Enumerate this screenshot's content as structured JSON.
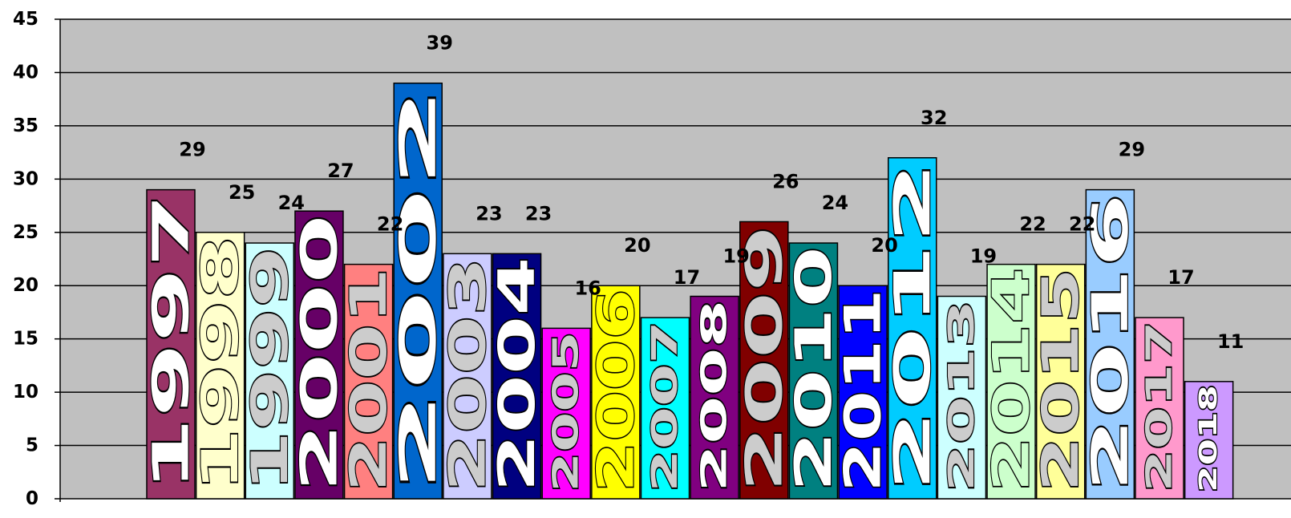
{
  "chart_data": {
    "type": "bar",
    "categories": [
      "1997",
      "1998",
      "1999",
      "2000",
      "2001",
      "2002",
      "2003",
      "2004",
      "2005",
      "2006",
      "2007",
      "2008",
      "2009",
      "2010",
      "2011",
      "2012",
      "2013",
      "2014",
      "2015",
      "2016",
      "2017",
      "2018"
    ],
    "values": [
      29,
      25,
      24,
      27,
      22,
      39,
      23,
      23,
      16,
      20,
      17,
      19,
      26,
      24,
      20,
      32,
      19,
      22,
      22,
      29,
      17,
      11
    ],
    "colors": [
      "#993366",
      "#FFFFCC",
      "#CCFFFF",
      "#660066",
      "#FF8080",
      "#0066CC",
      "#CCCCFF",
      "#000080",
      "#FF00FF",
      "#FFFF00",
      "#00FFFF",
      "#800080",
      "#800000",
      "#008080",
      "#0000FF",
      "#00CCFF",
      "#CCFFFF",
      "#CCFFCC",
      "#FFFF99",
      "#99CCFF",
      "#FF99CC",
      "#CC99FF"
    ],
    "label_fill": [
      "#FFFFFF",
      "#FFFFCC",
      "#CCCCCC",
      "#FFFFFF",
      "#CCCCCC",
      "#FFFFFF",
      "#CCCCCC",
      "#FFFFFF",
      "#CCCCCC",
      "#FFFF00",
      "#CCCCCC",
      "#FFFFFF",
      "#CCCCCC",
      "#FFFFFF",
      "#FFFFFF",
      "#FFFFFF",
      "#CCCCCC",
      "#CCFFCC",
      "#CCCCCC",
      "#FFFFFF",
      "#CCCCCC",
      "#FFFFFF"
    ],
    "title": "",
    "xlabel": "",
    "ylabel": "",
    "ylim": [
      0,
      45
    ],
    "yticks": [
      0,
      5,
      10,
      15,
      20,
      25,
      30,
      35,
      40,
      45
    ],
    "grid": true,
    "plot_background": "#C0C0C0",
    "data_labels": true,
    "category_labels_inside_bars": true
  }
}
